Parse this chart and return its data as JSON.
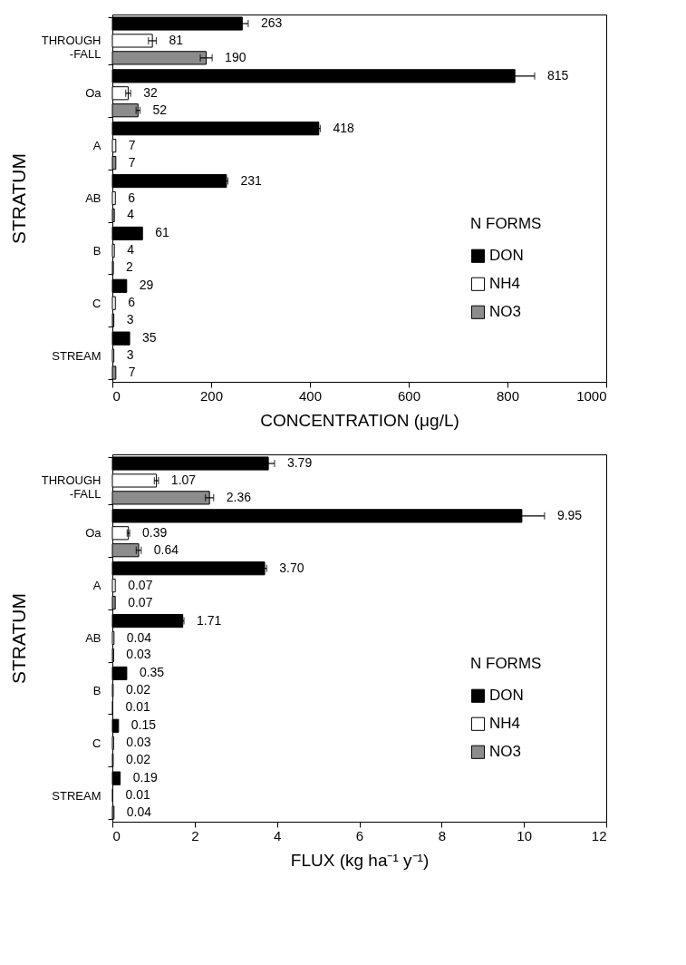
{
  "chart_data": [
    {
      "type": "bar",
      "orientation": "horizontal",
      "xlabel": "CONCENTRATION (μg/L)",
      "ylabel": "STRATUM",
      "legend_title": "N FORMS",
      "legend": "right",
      "grid": false,
      "xlim": [
        0,
        1000
      ],
      "xticks": [
        0,
        200,
        400,
        600,
        800,
        1000
      ],
      "categories": [
        "THROUGH\n-FALL",
        "Oa",
        "A",
        "AB",
        "B",
        "C",
        "STREAM"
      ],
      "series": [
        {
          "name": "DON",
          "color": "#000000",
          "values": [
            263,
            815,
            418,
            231,
            61,
            29,
            35
          ],
          "errors": [
            12,
            40,
            3,
            3,
            null,
            null,
            null
          ],
          "value_labels": [
            "263",
            "815",
            "418",
            "231",
            "61",
            "29",
            "35"
          ]
        },
        {
          "name": "NH4",
          "color": "#ffffff",
          "values": [
            81,
            32,
            7,
            6,
            4,
            6,
            3
          ],
          "errors": [
            8,
            5,
            null,
            null,
            null,
            null,
            null
          ],
          "value_labels": [
            "81",
            "32",
            "7",
            "6",
            "4",
            "6",
            "3"
          ]
        },
        {
          "name": "NO3",
          "color": "#8c8c8c",
          "values": [
            190,
            52,
            7,
            4,
            2,
            3,
            7
          ],
          "errors": [
            12,
            4,
            null,
            null,
            null,
            null,
            null
          ],
          "value_labels": [
            "190",
            "52",
            "7",
            "4",
            "2",
            "3",
            "7"
          ]
        }
      ]
    },
    {
      "type": "bar",
      "orientation": "horizontal",
      "xlabel": "FLUX (kg ha⁻¹ y⁻¹)",
      "ylabel": "STRATUM",
      "legend_title": "N FORMS",
      "legend": "right",
      "grid": false,
      "xlim": [
        0,
        12
      ],
      "xticks": [
        0,
        2,
        4,
        6,
        8,
        10,
        12
      ],
      "categories": [
        "THROUGH\n-FALL",
        "Oa",
        "A",
        "AB",
        "B",
        "C",
        "STREAM"
      ],
      "series": [
        {
          "name": "DON",
          "color": "#000000",
          "values": [
            3.79,
            9.95,
            3.7,
            1.71,
            0.35,
            0.15,
            0.19
          ],
          "errors": [
            0.15,
            0.55,
            0.05,
            0.03,
            null,
            null,
            null
          ],
          "value_labels": [
            "3.79",
            "9.95",
            "3.70",
            "1.71",
            "0.35",
            "0.15",
            "0.19"
          ]
        },
        {
          "name": "NH4",
          "color": "#ffffff",
          "values": [
            1.07,
            0.39,
            0.07,
            0.04,
            0.02,
            0.03,
            0.01
          ],
          "errors": [
            0.05,
            0.03,
            null,
            null,
            null,
            null,
            null
          ],
          "value_labels": [
            "1.07",
            "0.39",
            "0.07",
            "0.04",
            "0.02",
            "0.03",
            "0.01"
          ]
        },
        {
          "name": "NO3",
          "color": "#8c8c8c",
          "values": [
            2.36,
            0.64,
            0.07,
            0.03,
            0.01,
            0.02,
            0.04
          ],
          "errors": [
            0.1,
            0.06,
            null,
            null,
            null,
            null,
            null
          ],
          "value_labels": [
            "2.36",
            "0.64",
            "0.07",
            "0.03",
            "0.01",
            "0.02",
            "0.04"
          ]
        }
      ]
    }
  ]
}
